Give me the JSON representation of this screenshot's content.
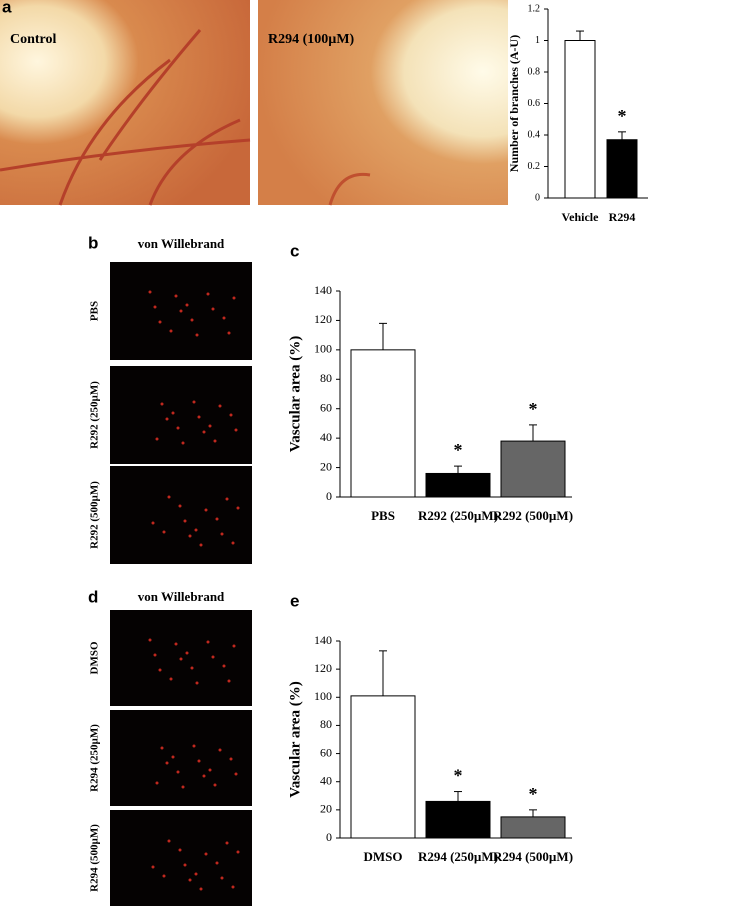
{
  "panels": {
    "a": {
      "letter": "a",
      "images": [
        "Control",
        "R294 (100µM)"
      ]
    },
    "b": {
      "letter": "b",
      "heading": "von Willebrand",
      "rows": [
        "PBS",
        "R292 (250µM)",
        "R292 (500µM)"
      ]
    },
    "c": {
      "letter": "c"
    },
    "d": {
      "letter": "d",
      "heading": "von Willebrand",
      "rows": [
        "DMSO",
        "R294 (250µM)",
        "R294 (500µM)"
      ]
    },
    "e": {
      "letter": "e"
    }
  },
  "chart_data": [
    {
      "type": "bar",
      "y_label": "Number of branches (A-U)",
      "categories": [
        "Vehicle",
        "R294"
      ],
      "values": [
        1,
        0.37
      ],
      "errors": [
        0.06,
        0.05
      ],
      "colors": [
        "#ffffff",
        "#000000"
      ],
      "annotations": [
        {
          "index": 1,
          "text": "*"
        }
      ],
      "ylim": [
        0,
        1.2
      ],
      "yticks": [
        0,
        0.2,
        0.4,
        0.6,
        0.8,
        1,
        1.2
      ]
    },
    {
      "type": "bar",
      "y_label": "Vascular area (%)",
      "categories": [
        "PBS",
        "R292 (250µM)",
        "R292 (500µM)"
      ],
      "values": [
        100,
        16,
        38
      ],
      "errors": [
        18,
        5,
        11
      ],
      "colors": [
        "#ffffff",
        "#000000",
        "#666666"
      ],
      "annotations": [
        {
          "index": 1,
          "text": "*"
        },
        {
          "index": 2,
          "text": "*"
        }
      ],
      "ylim": [
        0,
        140
      ],
      "yticks": [
        0,
        20,
        40,
        60,
        80,
        100,
        120,
        140
      ]
    },
    {
      "type": "bar",
      "y_label": "Vascular area (%)",
      "categories": [
        "DMSO",
        "R294 (250µM)",
        "R294 (500µM)"
      ],
      "values": [
        101,
        26,
        15
      ],
      "errors": [
        32,
        7,
        5
      ],
      "colors": [
        "#ffffff",
        "#000000",
        "#666666"
      ],
      "annotations": [
        {
          "index": 1,
          "text": "*"
        },
        {
          "index": 2,
          "text": "*"
        }
      ],
      "ylim": [
        0,
        140
      ],
      "yticks": [
        0,
        20,
        40,
        60,
        80,
        100,
        120,
        140
      ]
    }
  ]
}
